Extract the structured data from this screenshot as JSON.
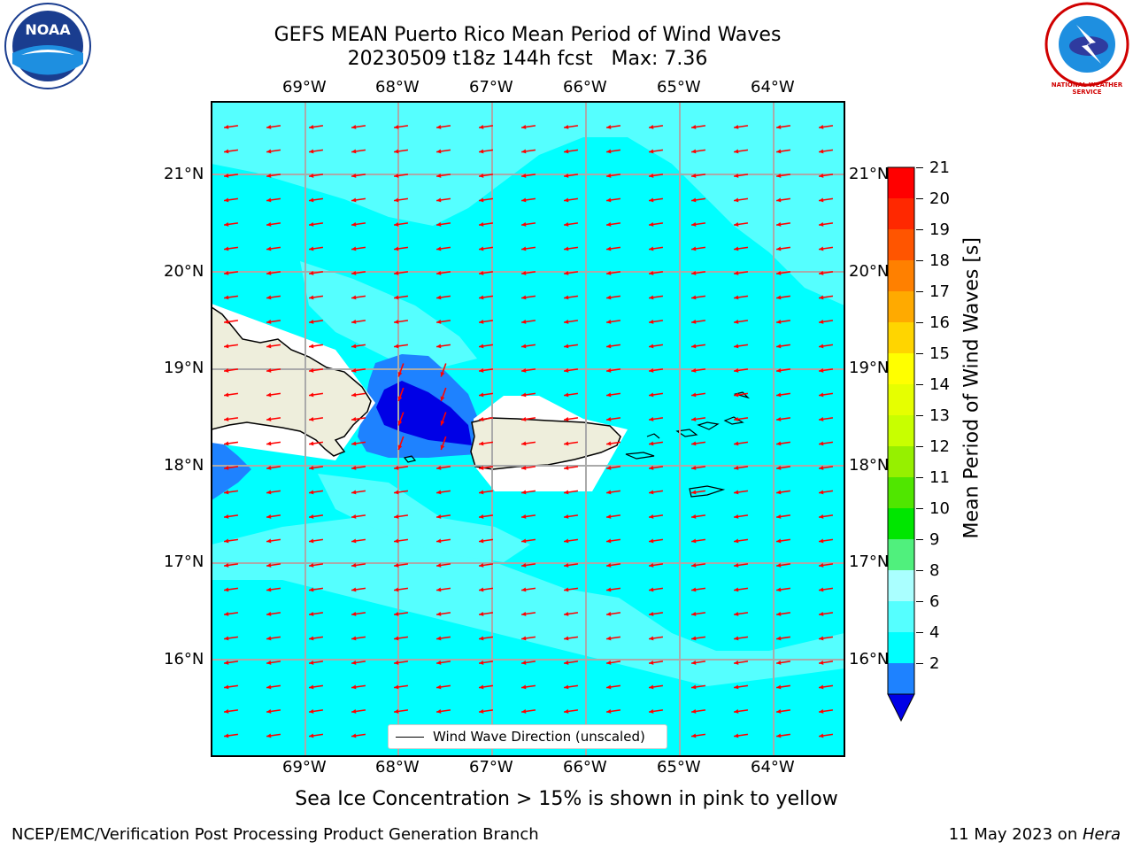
{
  "header": {
    "title_line1": "GEFS MEAN Puerto Rico Mean Period of Wind Waves",
    "title_line2": "20230509 t18z 144h fcst   Max: 7.36"
  },
  "logos": {
    "left_text": "NOAA",
    "right_text": "NATIONAL WEATHER SERVICE"
  },
  "map": {
    "lon_labels": [
      "69°W",
      "68°W",
      "67°W",
      "66°W",
      "65°W",
      "64°W"
    ],
    "lat_labels": [
      "21°N",
      "20°N",
      "19°N",
      "18°N",
      "17°N",
      "16°N"
    ],
    "legend_label": "Wind Wave Direction (unscaled)",
    "colors": {
      "ocean": "#00ffff",
      "light": "#55ffff",
      "mid_blue": "#1e82ff",
      "dark_blue": "#0000e6",
      "land": "#eeeedc",
      "arrow": "#ff0000"
    }
  },
  "colorbar": {
    "label": "Mean Period of Wind Waves [s]",
    "ticks": [
      "21",
      "20",
      "19",
      "18",
      "17",
      "16",
      "15",
      "14",
      "13",
      "12",
      "11",
      "10",
      "9",
      "8",
      "6",
      "4",
      "2"
    ],
    "colors_top_to_bottom": [
      "#ff0000",
      "#ff2800",
      "#ff5500",
      "#ff8000",
      "#ffaa00",
      "#ffd500",
      "#ffff00",
      "#e6ff00",
      "#c8ff00",
      "#96f000",
      "#50e600",
      "#00e600",
      "#50f07d",
      "#aaffff",
      "#55ffff",
      "#00ffff",
      "#1e82ff"
    ],
    "extend_color": "#0000e6"
  },
  "caption": "Sea Ice Concentration > 15% is shown in pink to yellow",
  "footer": {
    "left": "NCEP/EMC/Verification Post Processing Product Generation Branch",
    "right_prefix": "11 May 2023 on ",
    "right_host": "Hera"
  }
}
